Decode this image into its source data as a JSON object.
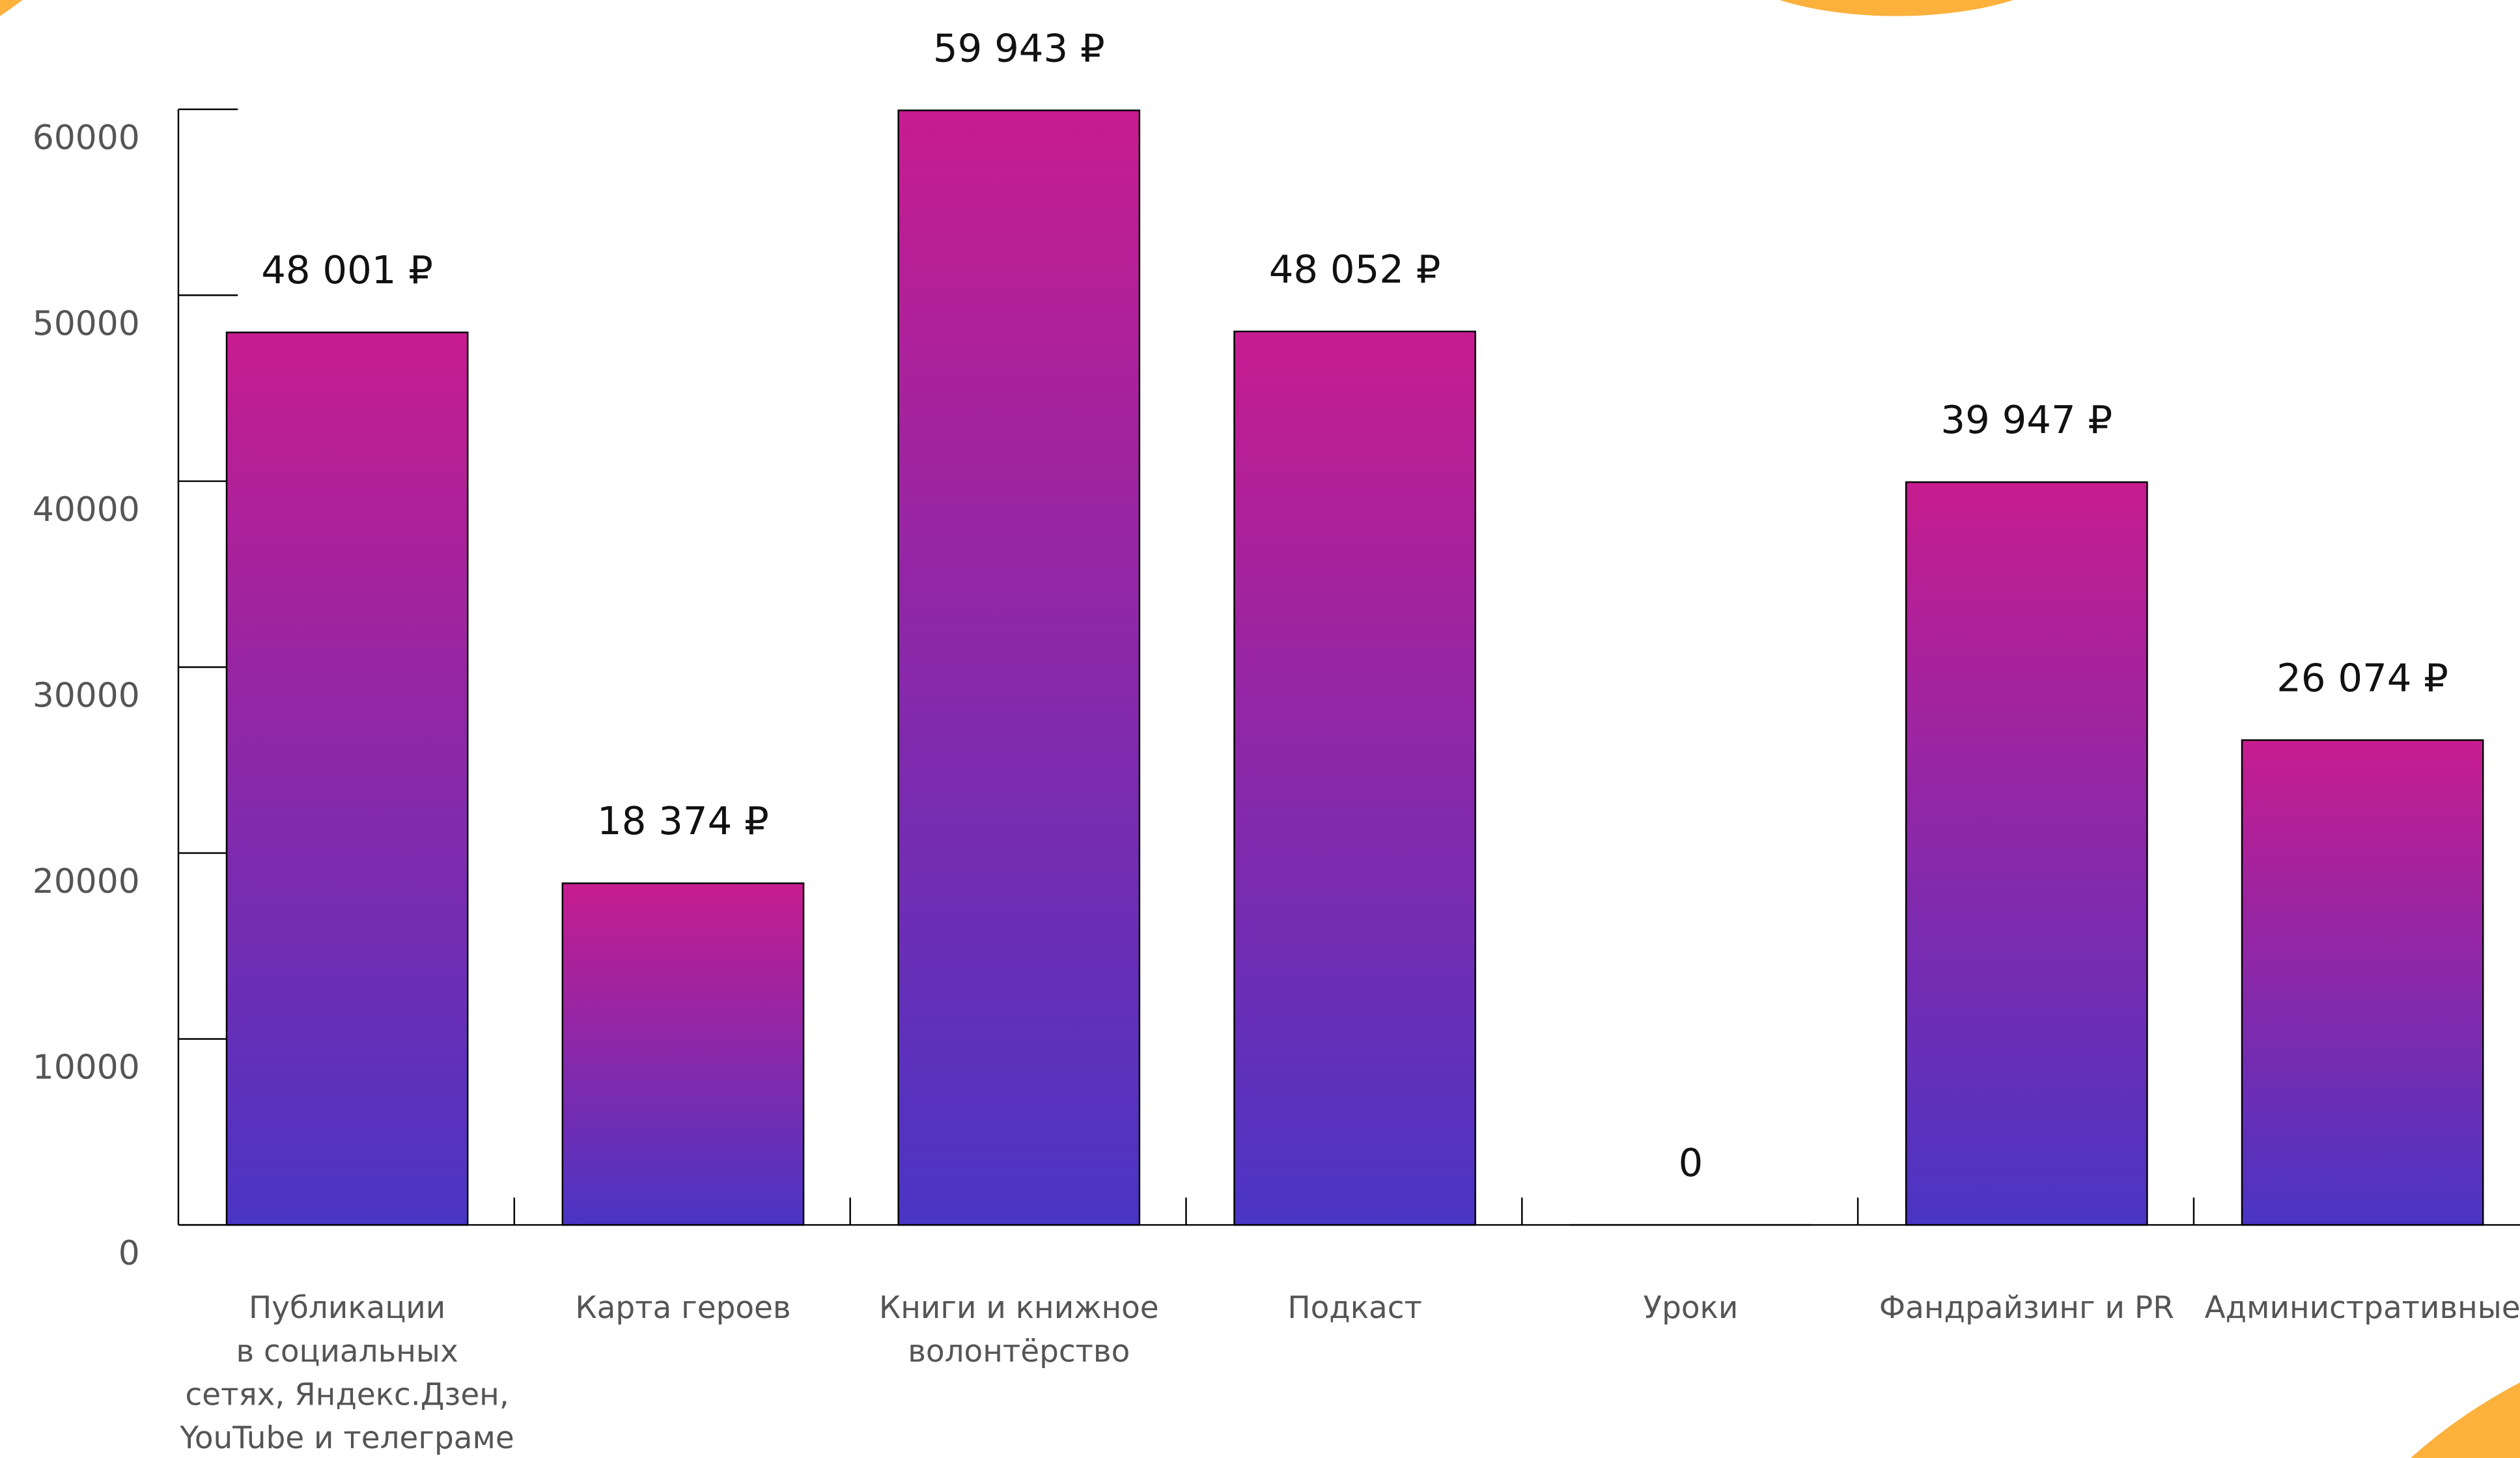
{
  "chart_data": {
    "type": "bar",
    "categories": [
      "Публикации\nв социальных\nсетях, Яндекс.Дзен,\nYouTube и телеграме",
      "Карта героев",
      "Книги и книжное\nволонтёрство",
      "Подкаст",
      "Уроки",
      "Фандрайзинг и PR",
      "Административные"
    ],
    "values": [
      48001,
      18374,
      59943,
      48052,
      0,
      39947,
      26074
    ],
    "value_labels": [
      "48 001 ₽",
      "18 374 ₽",
      "59 943 ₽",
      "48 052 ₽",
      "0",
      "39 947 ₽",
      "26 074 ₽"
    ],
    "color": [
      "#c71c8f",
      "#4a35c4"
    ],
    "ylim": [
      0,
      60000
    ],
    "yticks": [
      0,
      10000,
      20000,
      30000,
      40000,
      50000,
      60000
    ]
  }
}
